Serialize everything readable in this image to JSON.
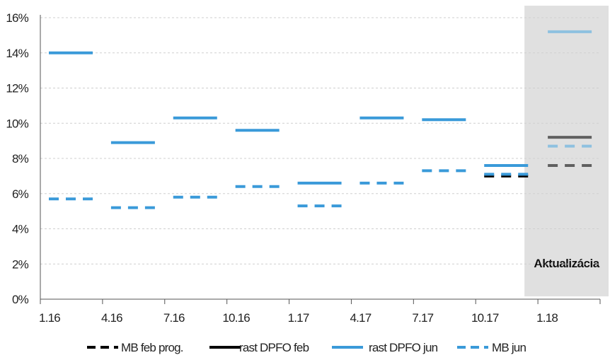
{
  "chart_data": {
    "type": "line",
    "title": "",
    "xlabel": "",
    "ylabel": "",
    "categories": [
      "1.16",
      "4.16",
      "7.16",
      "10.16",
      "1.17",
      "4.17",
      "7.17",
      "10.17",
      "1.18"
    ],
    "y_ticks": [
      "0%",
      "2%",
      "4%",
      "6%",
      "8%",
      "10%",
      "12%",
      "14%",
      "16%"
    ],
    "ylim": [
      0,
      16
    ],
    "grid": "horizontal dashed",
    "legend_position": "bottom",
    "highlight": {
      "label": "Aktualizácia",
      "category": "1.18",
      "color": "#e0e0e0"
    },
    "series": [
      {
        "name": "MB feb prog.",
        "style": "dashed",
        "color": "#000000",
        "values": [
          null,
          null,
          null,
          null,
          null,
          null,
          null,
          7.0,
          null
        ]
      },
      {
        "name": "rast DPFO feb",
        "style": "solid",
        "color": "#000000",
        "values": [
          null,
          null,
          null,
          null,
          null,
          null,
          null,
          null,
          null
        ]
      },
      {
        "name": "rast DPFO jun",
        "style": "solid",
        "color": "#3a9ad9",
        "values": [
          14.0,
          8.9,
          10.3,
          9.6,
          6.6,
          10.3,
          10.2,
          7.6,
          null
        ]
      },
      {
        "name": "MB jun",
        "style": "dashed",
        "color": "#3a9ad9",
        "values": [
          5.7,
          5.2,
          5.8,
          6.4,
          5.3,
          6.6,
          7.3,
          7.1,
          null
        ]
      }
    ],
    "update_values": {
      "rast DPFO feb": 9.2,
      "rast DPFO jun": 15.2,
      "MB feb prog.": 7.6,
      "MB jun": 8.7
    },
    "update_colors": {
      "rast DPFO feb": "#606060",
      "rast DPFO jun": "#8ec1e0",
      "MB feb prog.": "#606060",
      "MB jun": "#8ec1e0"
    }
  }
}
